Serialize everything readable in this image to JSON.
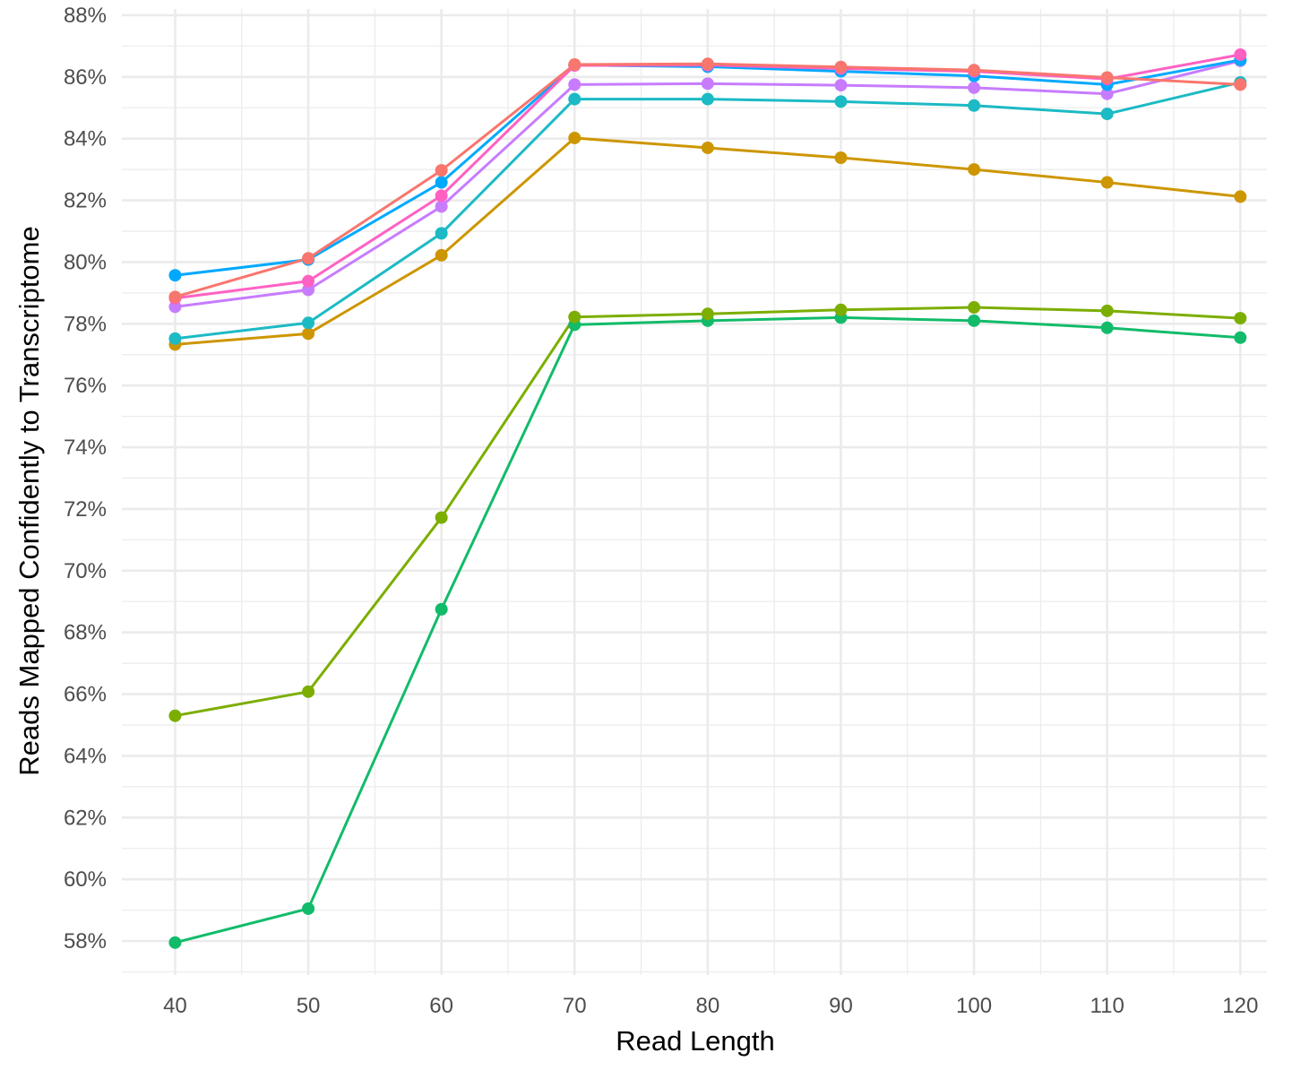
{
  "chart_data": {
    "type": "line",
    "title": "",
    "xlabel": "Read Length",
    "ylabel": "Reads Mapped Confidently to Transcriptome",
    "x": [
      40,
      50,
      60,
      70,
      80,
      90,
      100,
      110,
      120
    ],
    "x_ticks": [
      40,
      50,
      60,
      70,
      80,
      90,
      100,
      110,
      120
    ],
    "x_tick_labels": [
      "40",
      "50",
      "60",
      "70",
      "80",
      "90",
      "100",
      "110",
      "120"
    ],
    "xlim": [
      36,
      122
    ],
    "y_ticks": [
      58,
      60,
      62,
      64,
      66,
      68,
      70,
      72,
      74,
      76,
      78,
      80,
      82,
      84,
      86,
      88
    ],
    "y_tick_labels": [
      "58%",
      "60%",
      "62%",
      "64%",
      "66%",
      "68%",
      "70%",
      "72%",
      "74%",
      "76%",
      "78%",
      "80%",
      "82%",
      "84%",
      "86%",
      "88%"
    ],
    "ylim": [
      56.9,
      88.2
    ],
    "grid": true,
    "legend": "none",
    "series": [
      {
        "name": "series-green",
        "color": "#12bb6a",
        "values": [
          57.95,
          59.05,
          68.75,
          77.97,
          78.1,
          78.2,
          78.1,
          77.87,
          77.55
        ]
      },
      {
        "name": "series-olive",
        "color": "#7cae00",
        "values": [
          65.3,
          66.08,
          71.72,
          78.22,
          78.32,
          78.45,
          78.53,
          78.42,
          78.18
        ]
      },
      {
        "name": "series-gold",
        "color": "#cd9600",
        "values": [
          77.33,
          77.68,
          80.22,
          84.02,
          83.7,
          83.38,
          83.0,
          82.58,
          82.12
        ]
      },
      {
        "name": "series-teal",
        "color": "#1bbac4",
        "values": [
          77.52,
          78.03,
          80.93,
          85.28,
          85.28,
          85.2,
          85.07,
          84.8,
          85.82
        ]
      },
      {
        "name": "series-purple",
        "color": "#c77cff",
        "values": [
          78.55,
          79.1,
          81.8,
          85.75,
          85.78,
          85.73,
          85.65,
          85.45,
          86.52
        ]
      },
      {
        "name": "series-blue",
        "color": "#00a9ff",
        "values": [
          79.57,
          80.08,
          82.58,
          86.38,
          86.33,
          86.18,
          86.03,
          85.75,
          86.55
        ]
      },
      {
        "name": "series-pink",
        "color": "#ff61c3",
        "values": [
          78.83,
          79.38,
          82.15,
          86.37,
          86.38,
          86.27,
          86.18,
          85.93,
          86.72
        ]
      },
      {
        "name": "series-red",
        "color": "#f8766d",
        "values": [
          78.87,
          80.12,
          82.97,
          86.4,
          86.42,
          86.32,
          86.22,
          85.98,
          85.75
        ]
      }
    ]
  }
}
